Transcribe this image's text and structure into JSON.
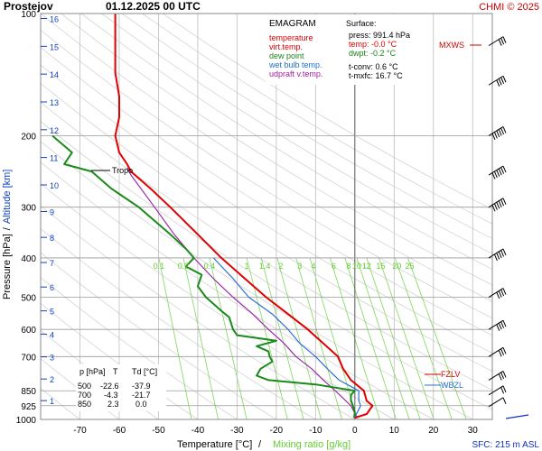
{
  "header": {
    "station": "Prostejov",
    "datetime": "01.12.2025 00 UTC",
    "credit": "CHMI © 2025"
  },
  "legend": {
    "title": "EMAGRAM",
    "items": [
      {
        "label": "temperature",
        "color": "#e00000"
      },
      {
        "label": "virt.temp.",
        "color": "#e00000"
      },
      {
        "label": "dew point",
        "color": "#208020"
      },
      {
        "label": "wet bulb temp.",
        "color": "#2070d0"
      },
      {
        "label": "udpraft v.temp.",
        "color": "#a020a0"
      }
    ]
  },
  "surface": {
    "title": "Surface:",
    "press": "press: 991.4 hPa",
    "temp": "temp: -0.0 °C",
    "dwpt": "dwpt: -0.2 °C",
    "tconv": "t-conv: 0.6 °C",
    "tmxfc": "t-mxfc: 16.7 °C"
  },
  "table": {
    "headers": [
      "p [hPa]",
      "T",
      "Td [°C]"
    ],
    "rows": [
      [
        "500",
        "-22.6",
        "-37.9"
      ],
      [
        "700",
        "-4.3",
        "-21.7"
      ],
      [
        "850",
        "2.3",
        "0.0"
      ]
    ]
  },
  "labels": {
    "tropo": "Tropo",
    "mxws": "MXWS",
    "fzlv": "FZLV",
    "wbzl": "WBZL",
    "sfc": "SFC: 215 m ASL",
    "ylabel_pressure": "Pressure [hPa]",
    "ylabel_sep": "/",
    "ylabel_altitude": "Altitude [km]",
    "xlabel_temp": "Temperature [°C]",
    "xlabel_sep": "/",
    "xlabel_mix": "Mixing ratio [g/kg]"
  },
  "colors": {
    "temperature": "#e00000",
    "dewpoint": "#1a8a1a",
    "wetbulb": "#2f6fd0",
    "parcel": "#9b2aa8",
    "mixing": "#7fd65a",
    "isotherm": "#bdbdbd",
    "isobar": "#9a9a9a",
    "altitude": "#1040c0",
    "mixlabel": "#66cc33",
    "credit": "#cc0000",
    "wind": "#000000",
    "sfcwind": "#1030c0"
  },
  "chart_data": {
    "type": "line",
    "title": "",
    "xlabel": "Temperature [°C] / Mixing ratio [g/kg]",
    "ylabel": "Pressure [hPa] / Altitude [km]",
    "xlim": [
      -80,
      35
    ],
    "ylim": [
      1000,
      100
    ],
    "yscale": "log",
    "x_ticks": [
      -70,
      -60,
      -50,
      -40,
      -30,
      -20,
      -10,
      0,
      10,
      20,
      30
    ],
    "y_ticks": [
      100,
      200,
      300,
      400,
      500,
      600,
      700,
      850,
      925,
      1000
    ],
    "altitude_ticks_km": [
      1,
      2,
      3,
      4,
      5,
      6,
      7,
      8,
      9,
      10,
      11,
      12,
      13,
      14,
      15,
      16
    ],
    "mixing_ratio_labels": [
      "0.1",
      "0.2",
      "0.4",
      "1",
      "1.4",
      "2",
      "3",
      "4",
      "6",
      "8",
      "10",
      "12",
      "15",
      "20",
      "25"
    ],
    "series": [
      {
        "name": "temperature",
        "points": [
          [
            991,
            0
          ],
          [
            970,
            3
          ],
          [
            925,
            4.5
          ],
          [
            900,
            3
          ],
          [
            850,
            2.3
          ],
          [
            800,
            -1
          ],
          [
            750,
            -3
          ],
          [
            700,
            -4.3
          ],
          [
            650,
            -8
          ],
          [
            600,
            -12
          ],
          [
            550,
            -17
          ],
          [
            500,
            -22.6
          ],
          [
            450,
            -28
          ],
          [
            400,
            -34
          ],
          [
            350,
            -40
          ],
          [
            300,
            -47
          ],
          [
            270,
            -52
          ],
          [
            245,
            -57
          ],
          [
            235,
            -58
          ],
          [
            220,
            -60
          ],
          [
            200,
            -61
          ],
          [
            180,
            -60
          ],
          [
            160,
            -60
          ],
          [
            140,
            -61
          ],
          [
            120,
            -61
          ],
          [
            100,
            -61
          ]
        ]
      },
      {
        "name": "dew point",
        "points": [
          [
            991,
            -0.2
          ],
          [
            960,
            0
          ],
          [
            925,
            -0.5
          ],
          [
            900,
            -1
          ],
          [
            870,
            -1
          ],
          [
            850,
            0
          ],
          [
            820,
            -10
          ],
          [
            800,
            -22
          ],
          [
            780,
            -25
          ],
          [
            750,
            -24
          ],
          [
            720,
            -21
          ],
          [
            700,
            -21.7
          ],
          [
            680,
            -22
          ],
          [
            660,
            -25
          ],
          [
            640,
            -20
          ],
          [
            620,
            -30
          ],
          [
            600,
            -31
          ],
          [
            560,
            -32
          ],
          [
            540,
            -34
          ],
          [
            500,
            -37.9
          ],
          [
            470,
            -40
          ],
          [
            440,
            -39
          ],
          [
            420,
            -43
          ],
          [
            400,
            -41
          ],
          [
            380,
            -43
          ],
          [
            350,
            -47
          ],
          [
            300,
            -55
          ],
          [
            270,
            -62
          ],
          [
            245,
            -67
          ],
          [
            235,
            -74
          ],
          [
            220,
            -72
          ],
          [
            200,
            -77
          ]
        ]
      },
      {
        "name": "wet bulb temp.",
        "points": [
          [
            991,
            -0.1
          ],
          [
            925,
            1.5
          ],
          [
            900,
            1
          ],
          [
            850,
            1
          ],
          [
            800,
            -4
          ],
          [
            750,
            -7
          ],
          [
            700,
            -10
          ],
          [
            650,
            -14
          ],
          [
            600,
            -17
          ],
          [
            550,
            -21
          ],
          [
            500,
            -27
          ],
          [
            450,
            -31
          ],
          [
            400,
            -36
          ]
        ]
      },
      {
        "name": "udpraft v.temp.",
        "points": [
          [
            991,
            0.6
          ],
          [
            925,
            -1
          ],
          [
            850,
            -5
          ],
          [
            800,
            -8
          ],
          [
            750,
            -11
          ],
          [
            700,
            -15
          ],
          [
            650,
            -18
          ],
          [
            600,
            -22
          ],
          [
            550,
            -26
          ],
          [
            500,
            -31
          ],
          [
            450,
            -36
          ],
          [
            400,
            -41
          ],
          [
            350,
            -46
          ],
          [
            300,
            -51
          ],
          [
            250,
            -57
          ],
          [
            240,
            -58
          ]
        ]
      }
    ],
    "wind_barbs": [
      {
        "p": 930,
        "speed": "5 kt"
      },
      {
        "p": 870,
        "speed": "15 kt"
      },
      {
        "p": 800,
        "speed": "25 kt"
      },
      {
        "p": 700,
        "speed": "30 kt"
      },
      {
        "p": 600,
        "speed": "35 kt"
      },
      {
        "p": 500,
        "speed": "40 kt"
      },
      {
        "p": 400,
        "speed": "50 kt"
      },
      {
        "p": 300,
        "speed": "60 kt"
      },
      {
        "p": 250,
        "speed": "65 kt"
      },
      {
        "p": 200,
        "speed": "55 kt"
      },
      {
        "p": 150,
        "speed": "35 kt"
      },
      {
        "p": 120,
        "speed": "25 kt"
      }
    ]
  }
}
